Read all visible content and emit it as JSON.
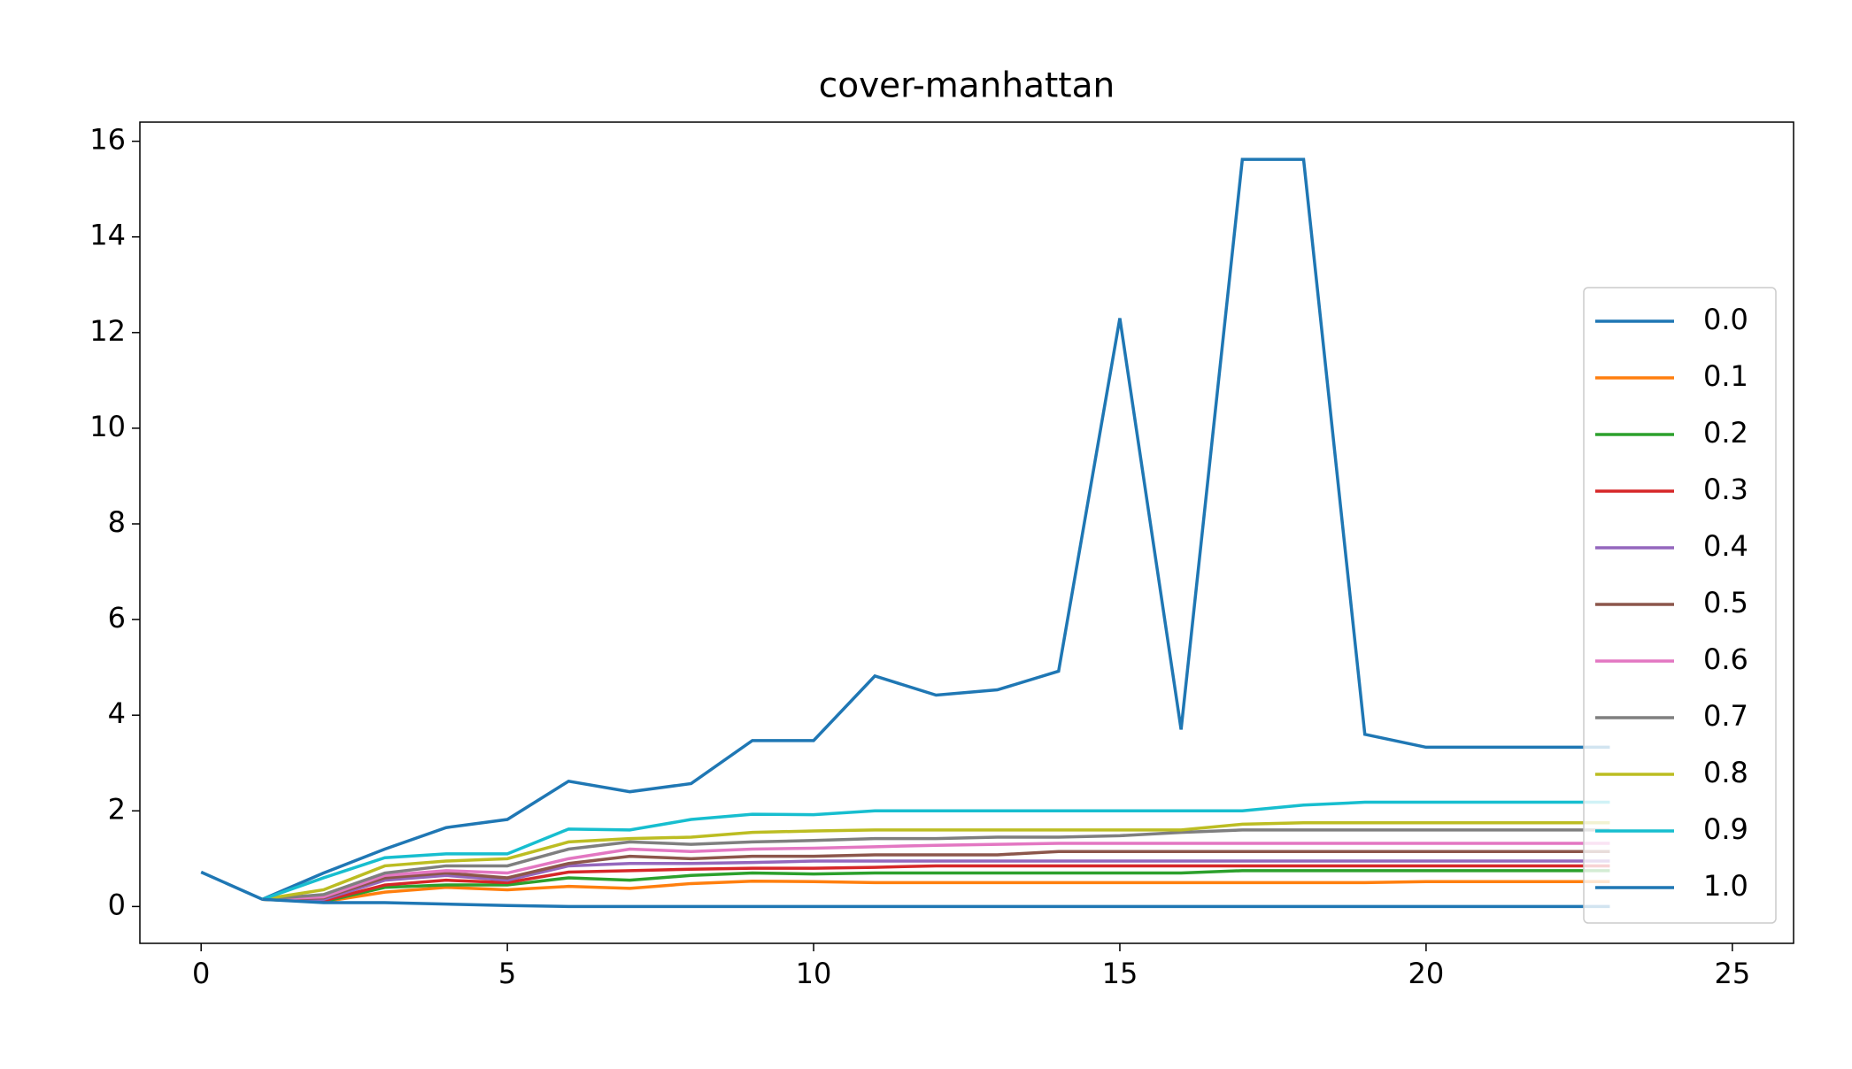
{
  "chart_data": {
    "type": "line",
    "title": "cover-manhattan",
    "x": [
      0,
      1,
      2,
      3,
      4,
      5,
      6,
      7,
      8,
      9,
      10,
      11,
      12,
      13,
      14,
      15,
      16,
      17,
      18,
      19,
      20,
      21,
      22,
      23
    ],
    "xlim": [
      -1,
      26
    ],
    "xticks": [
      0,
      5,
      10,
      15,
      20,
      25
    ],
    "ylim": [
      -0.77,
      16.4
    ],
    "yticks": [
      0,
      2,
      4,
      6,
      8,
      10,
      12,
      14,
      16
    ],
    "legend": "lower right",
    "series": [
      {
        "name": "0.0",
        "color": "#1f77b4",
        "values": [
          0.72,
          0.15,
          0.7,
          1.2,
          1.65,
          1.82,
          2.62,
          2.4,
          2.57,
          3.47,
          3.47,
          4.82,
          4.42,
          4.53,
          4.92,
          12.3,
          3.7,
          15.62,
          15.62,
          3.6,
          3.33,
          3.33,
          3.33,
          3.33
        ]
      },
      {
        "name": "0.1",
        "color": "#ff7f0e",
        "values": [
          null,
          0.15,
          0.1,
          0.3,
          0.4,
          0.35,
          0.42,
          0.38,
          0.48,
          0.53,
          0.52,
          0.5,
          0.5,
          0.5,
          0.5,
          0.5,
          0.5,
          0.5,
          0.5,
          0.5,
          0.52,
          0.52,
          0.52,
          0.52
        ]
      },
      {
        "name": "0.2",
        "color": "#2ca02c",
        "values": [
          null,
          0.15,
          0.1,
          0.4,
          0.45,
          0.45,
          0.6,
          0.55,
          0.65,
          0.7,
          0.68,
          0.7,
          0.7,
          0.7,
          0.7,
          0.7,
          0.7,
          0.75,
          0.75,
          0.75,
          0.75,
          0.75,
          0.75,
          0.75
        ]
      },
      {
        "name": "0.3",
        "color": "#d62728",
        "values": [
          null,
          0.15,
          0.12,
          0.45,
          0.55,
          0.5,
          0.72,
          0.75,
          0.78,
          0.8,
          0.8,
          0.82,
          0.85,
          0.85,
          0.85,
          0.85,
          0.85,
          0.85,
          0.85,
          0.85,
          0.85,
          0.85,
          0.85,
          0.85
        ]
      },
      {
        "name": "0.4",
        "color": "#9467bd",
        "values": [
          null,
          0.15,
          0.15,
          0.55,
          0.65,
          0.55,
          0.85,
          0.9,
          0.9,
          0.92,
          0.95,
          0.95,
          0.95,
          0.95,
          0.95,
          0.95,
          0.95,
          0.95,
          0.95,
          0.95,
          0.95,
          0.95,
          0.95,
          0.95
        ]
      },
      {
        "name": "0.5",
        "color": "#8c564b",
        "values": [
          null,
          0.15,
          0.18,
          0.6,
          0.7,
          0.6,
          0.9,
          1.05,
          1.0,
          1.05,
          1.05,
          1.08,
          1.08,
          1.08,
          1.15,
          1.15,
          1.15,
          1.15,
          1.15,
          1.15,
          1.15,
          1.15,
          1.15,
          1.15
        ]
      },
      {
        "name": "0.6",
        "color": "#e377c2",
        "values": [
          null,
          0.15,
          0.2,
          0.65,
          0.75,
          0.7,
          1.0,
          1.2,
          1.15,
          1.2,
          1.22,
          1.25,
          1.28,
          1.3,
          1.32,
          1.32,
          1.32,
          1.32,
          1.32,
          1.32,
          1.32,
          1.32,
          1.32,
          1.32
        ]
      },
      {
        "name": "0.7",
        "color": "#7f7f7f",
        "values": [
          null,
          0.15,
          0.25,
          0.7,
          0.85,
          0.85,
          1.2,
          1.35,
          1.3,
          1.35,
          1.38,
          1.42,
          1.42,
          1.45,
          1.45,
          1.48,
          1.55,
          1.6,
          1.6,
          1.6,
          1.6,
          1.6,
          1.6,
          1.6
        ]
      },
      {
        "name": "0.8",
        "color": "#bcbd22",
        "values": [
          null,
          0.15,
          0.35,
          0.85,
          0.95,
          1.0,
          1.35,
          1.42,
          1.45,
          1.55,
          1.58,
          1.6,
          1.6,
          1.6,
          1.6,
          1.6,
          1.6,
          1.72,
          1.75,
          1.75,
          1.75,
          1.75,
          1.75,
          1.75
        ]
      },
      {
        "name": "0.9",
        "color": "#17becf",
        "values": [
          null,
          0.15,
          0.6,
          1.02,
          1.1,
          1.1,
          1.62,
          1.6,
          1.82,
          1.93,
          1.92,
          2.0,
          2.0,
          2.0,
          2.0,
          2.0,
          2.0,
          2.0,
          2.12,
          2.18,
          2.18,
          2.18,
          2.18,
          2.18
        ]
      },
      {
        "name": "1.0",
        "color": "#1f77b4",
        "values": [
          null,
          0.15,
          0.08,
          0.08,
          0.05,
          0.02,
          0,
          0,
          0,
          0,
          0,
          0,
          0,
          0,
          0,
          0,
          0,
          0,
          0,
          0,
          0,
          0,
          0,
          0
        ]
      }
    ]
  }
}
